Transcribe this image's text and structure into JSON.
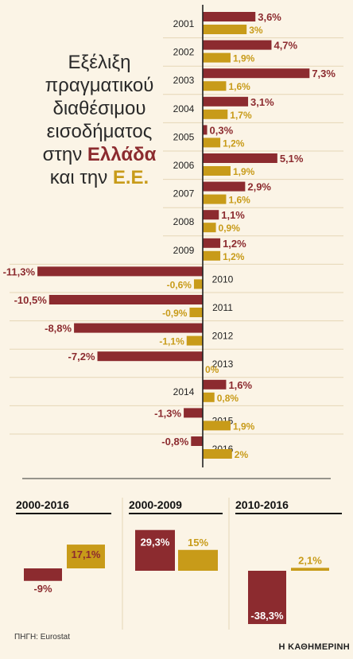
{
  "title": {
    "lines": [
      "Εξέλιξη",
      "πραγματικού",
      "διαθέσιμου",
      "εισοδήματος"
    ],
    "line5_prefix": "στην ",
    "line5_highlight": "Ελλάδα",
    "line6_prefix": "και την ",
    "line6_highlight": "Ε.Ε."
  },
  "colors": {
    "greece": "#8c2b2f",
    "eu": "#c89b19",
    "background": "#fbf4e6",
    "grid": "#e6d6b6"
  },
  "chart_data": [
    {
      "type": "bar",
      "orientation": "horizontal",
      "categories": [
        "2001",
        "2002",
        "2003",
        "2004",
        "2005",
        "2006",
        "2007",
        "2008",
        "2009",
        "2010",
        "2011",
        "2012",
        "2013",
        "2014",
        "2015",
        "2016"
      ],
      "series": [
        {
          "key": "greece",
          "values": [
            3.6,
            4.7,
            7.3,
            3.1,
            0.3,
            5.1,
            2.9,
            1.1,
            1.2,
            -11.3,
            -10.5,
            -8.8,
            -7.2,
            1.6,
            -1.3,
            -0.8
          ],
          "labels": [
            "3,6%",
            "4,7%",
            "7,3%",
            "3,1%",
            "0,3%",
            "5,1%",
            "2,9%",
            "1,1%",
            "1,2%",
            "-11,3%",
            "-10,5%",
            "-8,8%",
            "-7,2%",
            "1,6%",
            "-1,3%",
            "-0,8%"
          ]
        },
        {
          "key": "eu",
          "values": [
            3.0,
            1.9,
            1.6,
            1.7,
            1.2,
            1.9,
            1.6,
            0.9,
            1.2,
            -0.6,
            -0.9,
            -1.1,
            0.0,
            0.8,
            1.9,
            2.0
          ],
          "labels": [
            "3%",
            "1,9%",
            "1,6%",
            "1,7%",
            "1,2%",
            "1,9%",
            "1,6%",
            "0,9%",
            "1,2%",
            "-0,6%",
            "-0,9%",
            "-1,1%",
            "0%",
            "0,8%",
            "1,9%",
            "2%"
          ]
        }
      ]
    },
    {
      "type": "bar",
      "title": "2000-2016",
      "series": [
        {
          "key": "greece",
          "value": -9.0,
          "label": "-9%"
        },
        {
          "key": "eu",
          "value": 17.1,
          "label": "17,1%"
        }
      ]
    },
    {
      "type": "bar",
      "title": "2000-2009",
      "series": [
        {
          "key": "greece",
          "value": 29.3,
          "label": "29,3%"
        },
        {
          "key": "eu",
          "value": 15.0,
          "label": "15%"
        }
      ]
    },
    {
      "type": "bar",
      "title": "2010-2016",
      "series": [
        {
          "key": "greece",
          "value": -38.3,
          "label": "-38,3%"
        },
        {
          "key": "eu",
          "value": 2.1,
          "label": "2,1%"
        }
      ]
    }
  ],
  "source": "ΠΗΓΗ: Eurostat",
  "brand": "Η ΚΑΘΗΜΕΡΙΝΗ"
}
